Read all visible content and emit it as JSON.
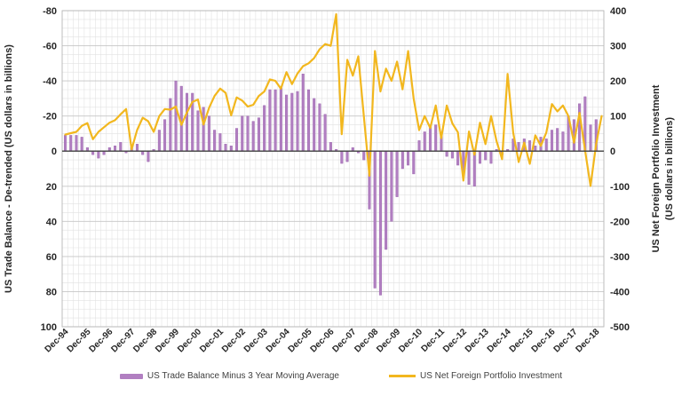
{
  "chart_data": {
    "type": "combo-bar-line",
    "frequency": "quarterly",
    "x_start": "Dec-94",
    "x_end": "Mar-19",
    "x_tick_labels": [
      "Dec-94",
      "Dec-95",
      "Dec-96",
      "Dec-97",
      "Dec-98",
      "Dec-99",
      "Dec-00",
      "Dec-01",
      "Dec-02",
      "Dec-03",
      "Dec-04",
      "Dec-05",
      "Dec-06",
      "Dec-07",
      "Dec-08",
      "Dec-09",
      "Dec-10",
      "Dec-11",
      "Dec-12",
      "Dec-13",
      "Dec-14",
      "Dec-15",
      "Dec-16",
      "Dec-17",
      "Dec-18"
    ],
    "left_axis": {
      "title": "US Trade Balance - De-trended (US dollars in billions)",
      "inverted": true,
      "min": -80,
      "max": 100,
      "step": 20,
      "ticks": [
        -80,
        -60,
        -40,
        -20,
        0,
        20,
        40,
        60,
        80,
        100
      ]
    },
    "right_axis": {
      "title_line1": "US Net Foreign Portfolio Investment",
      "title_line2": "(US dollars in billions)",
      "min": -500,
      "max": 400,
      "step": 100,
      "ticks": [
        400,
        300,
        200,
        100,
        0,
        -100,
        -200,
        -300,
        -400,
        -500
      ]
    },
    "series": [
      {
        "name": "US Trade Balance Minus 3 Year Moving Average",
        "type": "bar",
        "axis": "left",
        "color": "#b17fc1",
        "values": [
          -9,
          -9,
          -9,
          -8,
          -2,
          2,
          4,
          2,
          -2,
          -3,
          -5,
          1,
          -2,
          -4,
          2,
          6,
          -1,
          -12,
          -18,
          -30,
          -40,
          -37,
          -33,
          -33,
          -23,
          -25,
          -20,
          -12,
          -10,
          -4,
          -3,
          -13,
          -20,
          -20,
          -17,
          -19,
          -26,
          -35,
          -35,
          -36,
          -32,
          -33,
          -34,
          -44,
          -35,
          -30,
          -27,
          -21,
          -5,
          -1,
          7,
          6,
          -2,
          1,
          5,
          33,
          78,
          82,
          56,
          40,
          26,
          10,
          8,
          13,
          -6,
          -11,
          -15,
          -15,
          -9,
          3,
          4,
          8,
          12,
          19,
          20,
          7,
          5,
          7,
          -1,
          2,
          -1,
          -7,
          -5,
          -7,
          -6,
          -3,
          -8,
          -7,
          -12,
          -13,
          -11,
          -20,
          -18,
          -27,
          -31,
          -15,
          -18,
          null
        ]
      },
      {
        "name": "US Net Foreign Portfolio Investment",
        "type": "line",
        "axis": "right",
        "color": "#f2b71e",
        "values": [
          47,
          51,
          55,
          72,
          80,
          34,
          55,
          68,
          81,
          88,
          105,
          120,
          5,
          60,
          95,
          85,
          55,
          100,
          120,
          118,
          127,
          75,
          110,
          140,
          147,
          76,
          123,
          157,
          178,
          166,
          102,
          153,
          144,
          127,
          132,
          157,
          170,
          204,
          200,
          178,
          225,
          191,
          221,
          242,
          250,
          265,
          290,
          305,
          300,
          390,
          48,
          260,
          215,
          270,
          100,
          -70,
          285,
          170,
          235,
          200,
          255,
          176,
          285,
          150,
          60,
          100,
          66,
          130,
          37,
          130,
          79,
          54,
          -84,
          56,
          -10,
          81,
          20,
          100,
          28,
          -23,
          220,
          53,
          -31,
          24,
          -36,
          45,
          15,
          53,
          134,
          113,
          130,
          100,
          24,
          109,
          3,
          -99,
          20,
          100
        ]
      }
    ],
    "legend": {
      "position": "bottom",
      "items": [
        {
          "label": "US Trade Balance Minus 3 Year Moving Average",
          "color": "#b17fc1"
        },
        {
          "label": "US Net Foreign Portfolio Investment",
          "color": "#f2b71e"
        }
      ]
    },
    "grid": {
      "minor_color": "#e2e2e2",
      "major_color": "#c6c6c6",
      "zero_line_color": "#404040"
    }
  }
}
